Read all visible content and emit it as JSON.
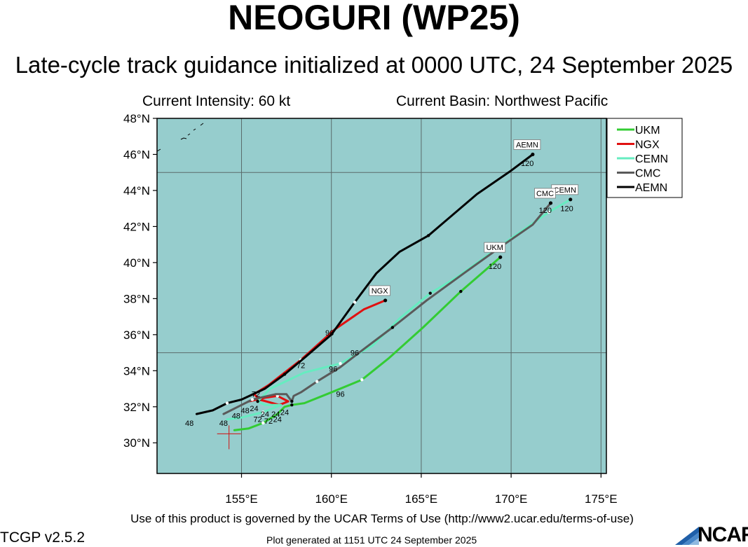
{
  "header": {
    "title": "NEOGURI (WP25)",
    "subtitle": "Late-cycle track guidance initialized at 0000 UTC, 24 September 2025",
    "intensity": "Current Intensity: 60 kt",
    "basin": "Current Basin: Northwest Pacific"
  },
  "footer": {
    "terms": "Use of this product is governed by the UCAR Terms of Use (http://www2.ucar.edu/terms-of-use)",
    "version": "TCGP v2.5.2",
    "generated": "Plot generated at 1151 UTC   24 September 2025",
    "logo": "NCAR"
  },
  "colors": {
    "ocean": "#96cdcd",
    "grid": "#5a6b6b",
    "UKM": "#33cc33",
    "NGX": "#e01010",
    "CEMN": "#66ecc0",
    "CMC": "#5a5a5a",
    "AEMN": "#000000"
  },
  "chart_data": {
    "type": "line",
    "title": "NEOGURI (WP25)",
    "xlabel": "",
    "ylabel": "",
    "xlim": [
      150.3,
      175.3
    ],
    "ylim": [
      28.3,
      48.0
    ],
    "x_ticks": [
      155,
      160,
      165,
      170,
      175
    ],
    "x_tick_labels": [
      "155°E",
      "160°E",
      "165°E",
      "170°E",
      "175°E"
    ],
    "y_ticks": [
      30,
      32,
      34,
      36,
      38,
      40,
      42,
      44,
      46,
      48
    ],
    "y_tick_labels": [
      "30°N",
      "32°N",
      "34°N",
      "36°N",
      "38°N",
      "40°N",
      "42°N",
      "44°N",
      "46°N",
      "48°N"
    ],
    "grid": true,
    "legend_position": "top-right",
    "current_position": [
      154.5,
      30.5
    ],
    "series": [
      {
        "name": "UKM",
        "points": [
          [
            154.6,
            30.7
          ],
          [
            155.4,
            30.8
          ],
          [
            156.2,
            31.1
          ],
          [
            157.0,
            31.6
          ],
          [
            157.4,
            32.0
          ],
          [
            157.8,
            32.1
          ],
          [
            158.5,
            32.2
          ],
          [
            160.0,
            32.8
          ],
          [
            161.7,
            33.5
          ],
          [
            163.2,
            34.7
          ],
          [
            165.1,
            36.4
          ],
          [
            167.2,
            38.4
          ],
          [
            169.4,
            40.3
          ]
        ],
        "end_label": "UKM",
        "end_hour": "120",
        "hour_labels": [
          {
            "x": 157.0,
            "y": 31.5,
            "h": "24"
          },
          {
            "x": 160.5,
            "y": 32.9,
            "h": "96"
          },
          {
            "x": 169.1,
            "y": 40.0,
            "h": "120"
          }
        ]
      },
      {
        "name": "NGX",
        "points": [
          [
            155.4,
            32.3
          ],
          [
            156.3,
            32.5
          ],
          [
            157.0,
            32.6
          ],
          [
            157.6,
            32.3
          ],
          [
            157.1,
            32.1
          ],
          [
            156.0,
            32.4
          ],
          [
            155.7,
            32.7
          ],
          [
            156.5,
            33.2
          ],
          [
            158.3,
            34.6
          ],
          [
            160.2,
            36.3
          ],
          [
            161.8,
            37.4
          ],
          [
            163.0,
            37.9
          ]
        ],
        "end_label": "NGX",
        "end_hour": "",
        "hour_labels": [
          {
            "x": 158.3,
            "y": 34.5,
            "h": "72"
          },
          {
            "x": 159.9,
            "y": 36.3,
            "h": "96"
          }
        ]
      },
      {
        "name": "CEMN",
        "points": [
          [
            154.2,
            31.3
          ],
          [
            155.0,
            31.4
          ],
          [
            156.2,
            31.7
          ],
          [
            157.2,
            32.1
          ],
          [
            156.3,
            32.1
          ],
          [
            155.9,
            32.3
          ],
          [
            156.6,
            33.0
          ],
          [
            158.5,
            33.9
          ],
          [
            160.5,
            34.4
          ],
          [
            162.3,
            35.4
          ],
          [
            163.8,
            36.9
          ],
          [
            165.5,
            38.3
          ],
          [
            167.0,
            39.2
          ],
          [
            169.8,
            41.2
          ],
          [
            172.1,
            42.8
          ],
          [
            173.3,
            43.5
          ]
        ],
        "end_label": "CEMN",
        "end_hour": "120",
        "hour_labels": [
          {
            "x": 154.0,
            "y": 31.3,
            "h": "48"
          },
          {
            "x": 156.5,
            "y": 31.4,
            "h": "72"
          },
          {
            "x": 160.1,
            "y": 34.3,
            "h": "96"
          },
          {
            "x": 173.1,
            "y": 43.2,
            "h": "120"
          }
        ]
      },
      {
        "name": "CMC",
        "points": [
          [
            154.0,
            31.6
          ],
          [
            154.8,
            32.0
          ],
          [
            155.6,
            32.4
          ],
          [
            156.9,
            32.7
          ],
          [
            157.5,
            32.7
          ],
          [
            157.8,
            32.3
          ],
          [
            157.9,
            32.6
          ],
          [
            158.3,
            32.8
          ],
          [
            159.2,
            33.4
          ],
          [
            160.5,
            34.2
          ],
          [
            161.8,
            35.2
          ],
          [
            163.4,
            36.4
          ],
          [
            165.3,
            37.9
          ],
          [
            167.5,
            39.5
          ],
          [
            169.6,
            41.0
          ],
          [
            171.2,
            42.1
          ],
          [
            172.2,
            43.3
          ]
        ],
        "end_label": "CMC",
        "end_hour": "120",
        "hour_labels": [
          {
            "x": 161.3,
            "y": 35.2,
            "h": "96"
          },
          {
            "x": 171.9,
            "y": 43.1,
            "h": "120"
          }
        ]
      },
      {
        "name": "AEMN",
        "points": [
          [
            152.5,
            31.6
          ],
          [
            153.4,
            31.8
          ],
          [
            154.2,
            32.2
          ],
          [
            155.0,
            32.4
          ],
          [
            156.3,
            33.0
          ],
          [
            157.4,
            33.8
          ],
          [
            158.6,
            34.8
          ],
          [
            160.0,
            36.0
          ],
          [
            161.3,
            37.8
          ],
          [
            162.5,
            39.4
          ],
          [
            163.8,
            40.6
          ],
          [
            165.4,
            41.5
          ],
          [
            168.1,
            43.8
          ],
          [
            170.0,
            45.1
          ],
          [
            171.2,
            46.0
          ]
        ],
        "end_label": "AEMN",
        "end_hour": "120",
        "hour_labels": [
          {
            "x": 152.1,
            "y": 31.3,
            "h": "48"
          },
          {
            "x": 170.9,
            "y": 45.7,
            "h": "120"
          }
        ]
      }
    ],
    "misc_labels": [
      {
        "x": 154.7,
        "y": 31.7,
        "h": "48"
      },
      {
        "x": 155.2,
        "y": 32.0,
        "h": "48"
      },
      {
        "x": 155.9,
        "y": 31.5,
        "h": "72"
      },
      {
        "x": 156.3,
        "y": 31.8,
        "h": "24"
      },
      {
        "x": 155.7,
        "y": 32.1,
        "h": "24"
      },
      {
        "x": 157.4,
        "y": 31.9,
        "h": "24"
      },
      {
        "x": 156.9,
        "y": 31.8,
        "h": "24"
      },
      {
        "x": 155.8,
        "y": 32.9,
        "h": "72"
      }
    ]
  }
}
